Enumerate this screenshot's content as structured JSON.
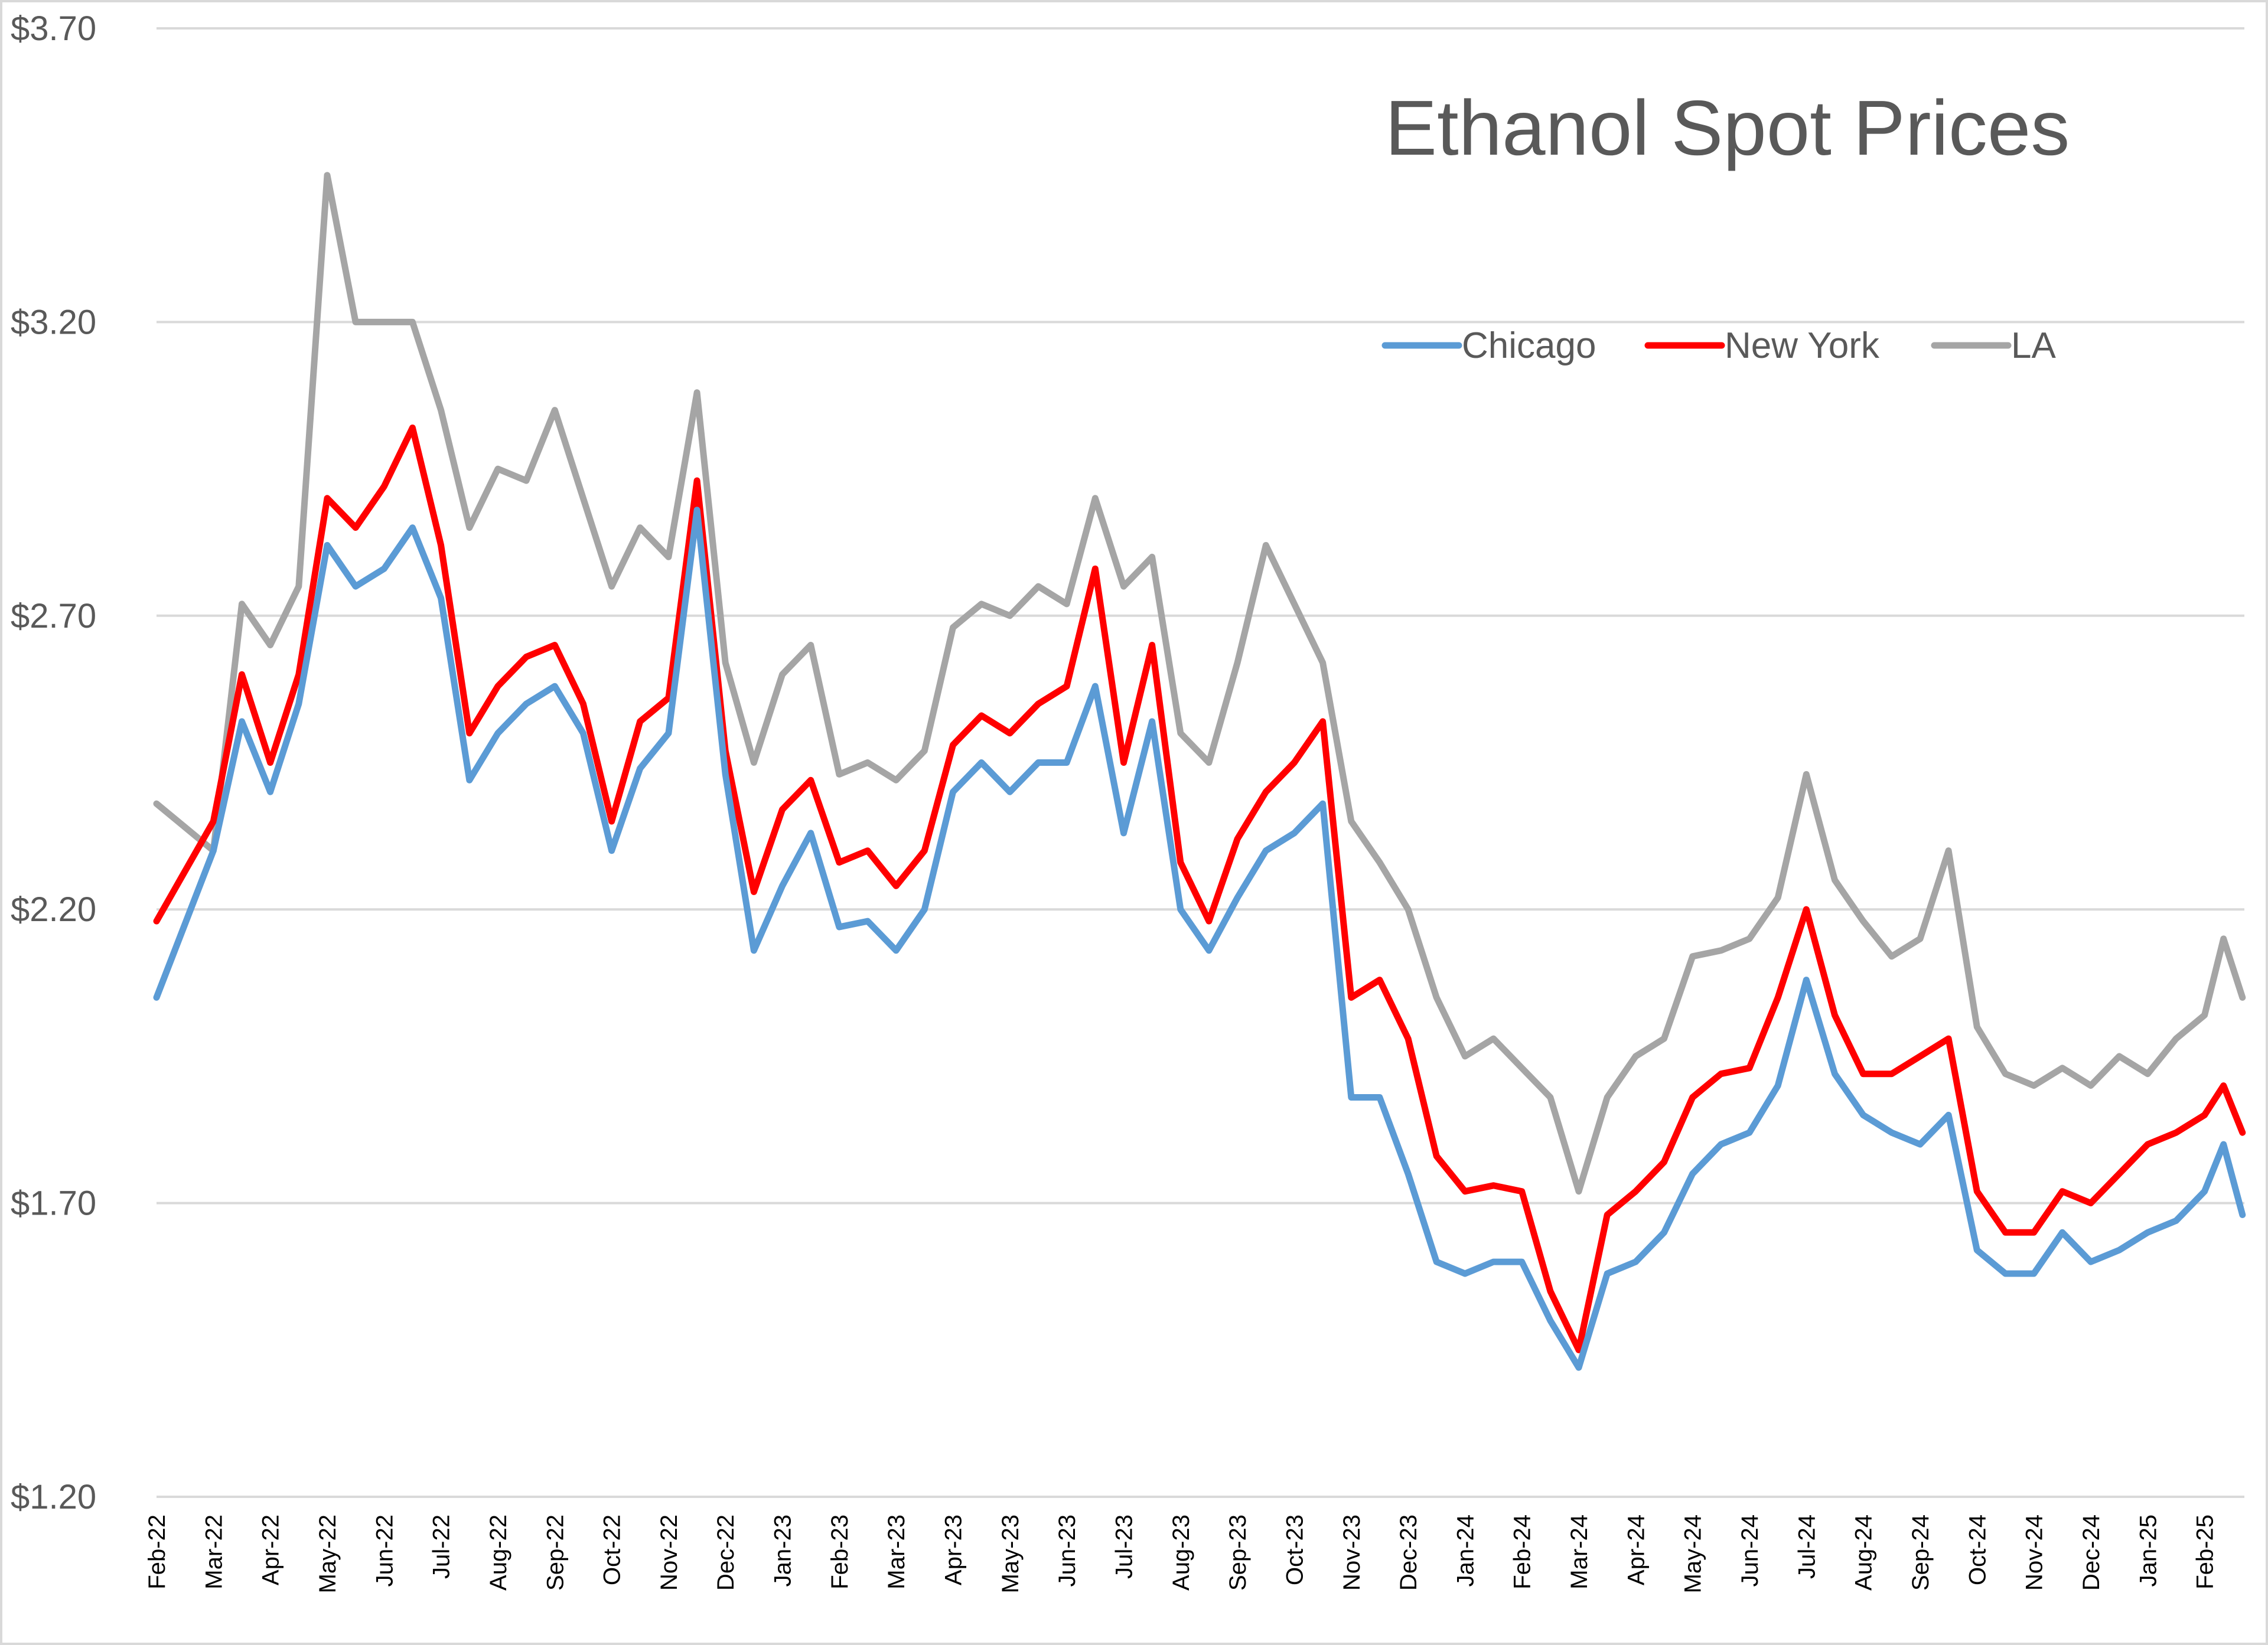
{
  "chart_data": {
    "type": "line",
    "title": "Ethanol Spot Prices",
    "xlabel": "",
    "ylabel": "",
    "ylim": [
      1.2,
      3.7
    ],
    "yticks": [
      1.2,
      1.7,
      2.2,
      2.7,
      3.2,
      3.7
    ],
    "ytick_labels": [
      "$1.20",
      "$1.70",
      "$2.20",
      "$2.70",
      "$3.20",
      "$3.70"
    ],
    "x_start": "2022-02",
    "x_end": "2025-02",
    "x_tick_labels": [
      "Feb-22",
      "Mar-22",
      "Apr-22",
      "May-22",
      "Jun-22",
      "Jul-22",
      "Aug-22",
      "Sep-22",
      "Oct-22",
      "Nov-22",
      "Dec-22",
      "Jan-23",
      "Feb-23",
      "Mar-23",
      "Apr-23",
      "May-23",
      "Jun-23",
      "Jul-23",
      "Aug-23",
      "Sep-23",
      "Oct-23",
      "Nov-23",
      "Dec-23",
      "Jan-24",
      "Feb-24",
      "Mar-24",
      "Apr-24",
      "May-24",
      "Jun-24",
      "Jul-24",
      "Aug-24",
      "Sep-24",
      "Oct-24",
      "Nov-24",
      "Dec-24",
      "Jan-25",
      "Feb-25"
    ],
    "grid": true,
    "legend_position": "top-right",
    "series": [
      {
        "name": "Chicago",
        "color": "#5b9bd5",
        "points": [
          [
            "Feb-22",
            2.05
          ],
          [
            "Mar-22",
            2.3
          ],
          [
            "Mar-22",
            2.52
          ],
          [
            "Apr-22",
            2.4
          ],
          [
            "Apr-22",
            2.55
          ],
          [
            "May-22",
            2.82
          ],
          [
            "May-22",
            2.75
          ],
          [
            "Jun-22",
            2.78
          ],
          [
            "Jun-22",
            2.85
          ],
          [
            "Jul-22",
            2.73
          ],
          [
            "Jul-22",
            2.42
          ],
          [
            "Aug-22",
            2.5
          ],
          [
            "Aug-22",
            2.55
          ],
          [
            "Sep-22",
            2.58
          ],
          [
            "Sep-22",
            2.5
          ],
          [
            "Oct-22",
            2.3
          ],
          [
            "Oct-22",
            2.44
          ],
          [
            "Nov-22",
            2.5
          ],
          [
            "Nov-22",
            2.88
          ],
          [
            "Dec-22",
            2.43
          ],
          [
            "Dec-22",
            2.13
          ],
          [
            "Jan-23",
            2.24
          ],
          [
            "Jan-23",
            2.33
          ],
          [
            "Feb-23",
            2.17
          ],
          [
            "Feb-23",
            2.18
          ],
          [
            "Mar-23",
            2.13
          ],
          [
            "Mar-23",
            2.2
          ],
          [
            "Apr-23",
            2.4
          ],
          [
            "Apr-23",
            2.45
          ],
          [
            "May-23",
            2.4
          ],
          [
            "May-23",
            2.45
          ],
          [
            "Jun-23",
            2.45
          ],
          [
            "Jun-23",
            2.58
          ],
          [
            "Jul-23",
            2.33
          ],
          [
            "Jul-23",
            2.52
          ],
          [
            "Aug-23",
            2.2
          ],
          [
            "Aug-23",
            2.13
          ],
          [
            "Sep-23",
            2.22
          ],
          [
            "Sep-23",
            2.3
          ],
          [
            "Oct-23",
            2.33
          ],
          [
            "Oct-23",
            2.38
          ],
          [
            "Nov-23",
            1.88
          ],
          [
            "Nov-23",
            1.88
          ],
          [
            "Dec-23",
            1.75
          ],
          [
            "Dec-23",
            1.6
          ],
          [
            "Jan-24",
            1.58
          ],
          [
            "Jan-24",
            1.6
          ],
          [
            "Feb-24",
            1.6
          ],
          [
            "Feb-24",
            1.5
          ],
          [
            "Mar-24",
            1.42
          ],
          [
            "Mar-24",
            1.58
          ],
          [
            "Apr-24",
            1.6
          ],
          [
            "Apr-24",
            1.65
          ],
          [
            "May-24",
            1.75
          ],
          [
            "May-24",
            1.8
          ],
          [
            "Jun-24",
            1.82
          ],
          [
            "Jun-24",
            1.9
          ],
          [
            "Jul-24",
            2.08
          ],
          [
            "Jul-24",
            1.92
          ],
          [
            "Aug-24",
            1.85
          ],
          [
            "Aug-24",
            1.82
          ],
          [
            "Sep-24",
            1.8
          ],
          [
            "Sep-24",
            1.85
          ],
          [
            "Oct-24",
            1.62
          ],
          [
            "Oct-24",
            1.58
          ],
          [
            "Nov-24",
            1.58
          ],
          [
            "Nov-24",
            1.65
          ],
          [
            "Dec-24",
            1.6
          ],
          [
            "Dec-24",
            1.62
          ],
          [
            "Jan-25",
            1.65
          ],
          [
            "Jan-25",
            1.67
          ],
          [
            "Feb-25",
            1.72
          ],
          [
            "Feb-25",
            1.8
          ],
          [
            "Feb-25",
            1.68
          ]
        ]
      },
      {
        "name": "New York",
        "color": "#ff0000",
        "points": [
          [
            "Feb-22",
            2.18
          ],
          [
            "Mar-22",
            2.35
          ],
          [
            "Mar-22",
            2.6
          ],
          [
            "Apr-22",
            2.45
          ],
          [
            "Apr-22",
            2.6
          ],
          [
            "May-22",
            2.9
          ],
          [
            "May-22",
            2.85
          ],
          [
            "Jun-22",
            2.92
          ],
          [
            "Jun-22",
            3.02
          ],
          [
            "Jul-22",
            2.82
          ],
          [
            "Jul-22",
            2.5
          ],
          [
            "Aug-22",
            2.58
          ],
          [
            "Aug-22",
            2.63
          ],
          [
            "Sep-22",
            2.65
          ],
          [
            "Sep-22",
            2.55
          ],
          [
            "Oct-22",
            2.35
          ],
          [
            "Oct-22",
            2.52
          ],
          [
            "Nov-22",
            2.56
          ],
          [
            "Nov-22",
            2.93
          ],
          [
            "Dec-22",
            2.47
          ],
          [
            "Dec-22",
            2.23
          ],
          [
            "Jan-23",
            2.37
          ],
          [
            "Jan-23",
            2.42
          ],
          [
            "Feb-23",
            2.28
          ],
          [
            "Feb-23",
            2.3
          ],
          [
            "Mar-23",
            2.24
          ],
          [
            "Mar-23",
            2.3
          ],
          [
            "Apr-23",
            2.48
          ],
          [
            "Apr-23",
            2.53
          ],
          [
            "May-23",
            2.5
          ],
          [
            "May-23",
            2.55
          ],
          [
            "Jun-23",
            2.58
          ],
          [
            "Jun-23",
            2.78
          ],
          [
            "Jul-23",
            2.45
          ],
          [
            "Jul-23",
            2.65
          ],
          [
            "Aug-23",
            2.28
          ],
          [
            "Aug-23",
            2.18
          ],
          [
            "Sep-23",
            2.32
          ],
          [
            "Sep-23",
            2.4
          ],
          [
            "Oct-23",
            2.45
          ],
          [
            "Oct-23",
            2.52
          ],
          [
            "Nov-23",
            2.05
          ],
          [
            "Nov-23",
            2.08
          ],
          [
            "Dec-23",
            1.98
          ],
          [
            "Dec-23",
            1.78
          ],
          [
            "Jan-24",
            1.72
          ],
          [
            "Jan-24",
            1.73
          ],
          [
            "Feb-24",
            1.72
          ],
          [
            "Feb-24",
            1.55
          ],
          [
            "Mar-24",
            1.45
          ],
          [
            "Mar-24",
            1.68
          ],
          [
            "Apr-24",
            1.72
          ],
          [
            "Apr-24",
            1.77
          ],
          [
            "May-24",
            1.88
          ],
          [
            "May-24",
            1.92
          ],
          [
            "Jun-24",
            1.93
          ],
          [
            "Jun-24",
            2.05
          ],
          [
            "Jul-24",
            2.2
          ],
          [
            "Jul-24",
            2.02
          ],
          [
            "Aug-24",
            1.92
          ],
          [
            "Aug-24",
            1.92
          ],
          [
            "Sep-24",
            1.95
          ],
          [
            "Sep-24",
            1.98
          ],
          [
            "Oct-24",
            1.72
          ],
          [
            "Oct-24",
            1.65
          ],
          [
            "Nov-24",
            1.65
          ],
          [
            "Nov-24",
            1.72
          ],
          [
            "Dec-24",
            1.7
          ],
          [
            "Dec-24",
            1.75
          ],
          [
            "Jan-25",
            1.8
          ],
          [
            "Jan-25",
            1.82
          ],
          [
            "Feb-25",
            1.85
          ],
          [
            "Feb-25",
            1.9
          ],
          [
            "Feb-25",
            1.82
          ]
        ]
      },
      {
        "name": "LA",
        "color": "#a5a5a5",
        "points": [
          [
            "Feb-22",
            2.38
          ],
          [
            "Mar-22",
            2.3
          ],
          [
            "Mar-22",
            2.72
          ],
          [
            "Apr-22",
            2.65
          ],
          [
            "Apr-22",
            2.75
          ],
          [
            "May-22",
            3.45
          ],
          [
            "May-22",
            3.2
          ],
          [
            "Jun-22",
            3.2
          ],
          [
            "Jun-22",
            3.2
          ],
          [
            "Jul-22",
            3.05
          ],
          [
            "Jul-22",
            2.85
          ],
          [
            "Aug-22",
            2.95
          ],
          [
            "Aug-22",
            2.93
          ],
          [
            "Sep-22",
            3.05
          ],
          [
            "Sep-22",
            2.9
          ],
          [
            "Oct-22",
            2.75
          ],
          [
            "Oct-22",
            2.85
          ],
          [
            "Nov-22",
            2.8
          ],
          [
            "Nov-22",
            3.08
          ],
          [
            "Dec-22",
            2.62
          ],
          [
            "Dec-22",
            2.45
          ],
          [
            "Jan-23",
            2.6
          ],
          [
            "Jan-23",
            2.65
          ],
          [
            "Feb-23",
            2.43
          ],
          [
            "Feb-23",
            2.45
          ],
          [
            "Mar-23",
            2.42
          ],
          [
            "Mar-23",
            2.47
          ],
          [
            "Apr-23",
            2.68
          ],
          [
            "Apr-23",
            2.72
          ],
          [
            "May-23",
            2.7
          ],
          [
            "May-23",
            2.75
          ],
          [
            "Jun-23",
            2.72
          ],
          [
            "Jun-23",
            2.9
          ],
          [
            "Jul-23",
            2.75
          ],
          [
            "Jul-23",
            2.8
          ],
          [
            "Aug-23",
            2.5
          ],
          [
            "Aug-23",
            2.45
          ],
          [
            "Sep-23",
            2.62
          ],
          [
            "Sep-23",
            2.82
          ],
          [
            "Oct-23",
            2.72
          ],
          [
            "Oct-23",
            2.62
          ],
          [
            "Nov-23",
            2.35
          ],
          [
            "Nov-23",
            2.28
          ],
          [
            "Dec-23",
            2.2
          ],
          [
            "Dec-23",
            2.05
          ],
          [
            "Jan-24",
            1.95
          ],
          [
            "Jan-24",
            1.98
          ],
          [
            "Feb-24",
            1.93
          ],
          [
            "Feb-24",
            1.88
          ],
          [
            "Mar-24",
            1.72
          ],
          [
            "Mar-24",
            1.88
          ],
          [
            "Apr-24",
            1.95
          ],
          [
            "Apr-24",
            1.98
          ],
          [
            "May-24",
            2.12
          ],
          [
            "May-24",
            2.13
          ],
          [
            "Jun-24",
            2.15
          ],
          [
            "Jun-24",
            2.22
          ],
          [
            "Jul-24",
            2.43
          ],
          [
            "Jul-24",
            2.25
          ],
          [
            "Aug-24",
            2.18
          ],
          [
            "Aug-24",
            2.12
          ],
          [
            "Sep-24",
            2.15
          ],
          [
            "Sep-24",
            2.3
          ],
          [
            "Oct-24",
            2.0
          ],
          [
            "Oct-24",
            1.92
          ],
          [
            "Nov-24",
            1.9
          ],
          [
            "Nov-24",
            1.93
          ],
          [
            "Dec-24",
            1.9
          ],
          [
            "Dec-24",
            1.95
          ],
          [
            "Jan-25",
            1.92
          ],
          [
            "Jan-25",
            1.98
          ],
          [
            "Feb-25",
            2.02
          ],
          [
            "Feb-25",
            2.15
          ],
          [
            "Feb-25",
            2.05
          ]
        ]
      }
    ]
  }
}
